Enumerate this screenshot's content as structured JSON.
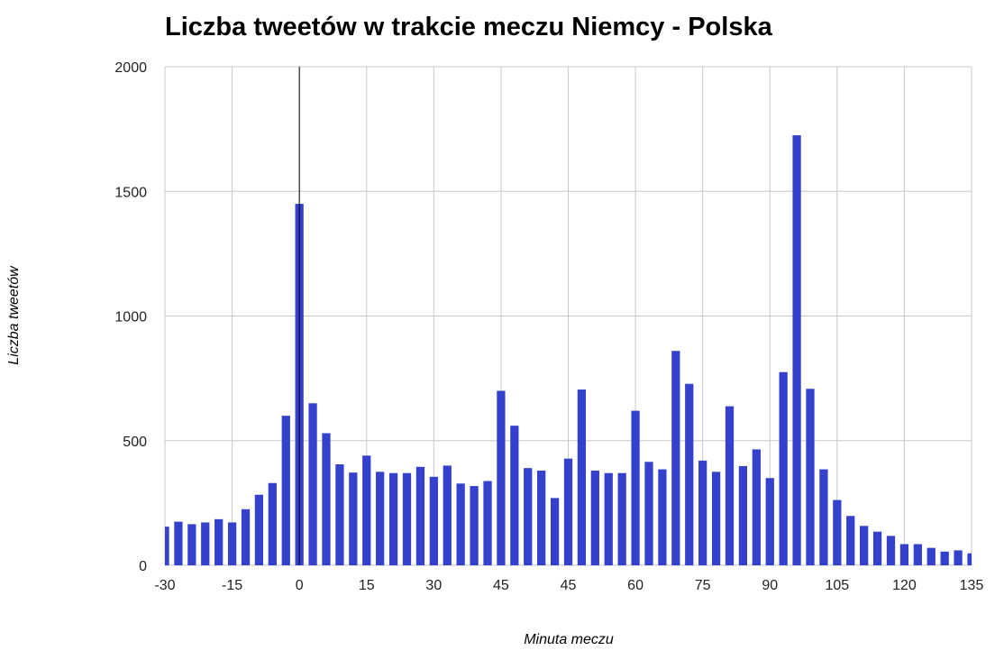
{
  "chart_data": {
    "type": "bar",
    "title": "Liczba tweetów w trakcie meczu Niemcy - Polska",
    "xlabel": "Minuta meczu",
    "ylabel": "Liczba tweetów",
    "ylim": [
      0,
      2000
    ],
    "y_ticks": [
      "0",
      "500",
      "1000",
      "1500",
      "2000"
    ],
    "x_ticks": [
      "-30",
      "-15",
      "0",
      "15",
      "30",
      "45",
      "45",
      "60",
      "75",
      "90",
      "105",
      "120",
      "135"
    ],
    "grid": true,
    "bar_color": "#3341cc",
    "kickoff_line_color": "#000000",
    "values": [
      155,
      175,
      165,
      172,
      185,
      172,
      225,
      283,
      330,
      600,
      1450,
      650,
      530,
      405,
      372,
      440,
      375,
      370,
      370,
      395,
      355,
      400,
      328,
      318,
      338,
      700,
      560,
      390,
      380,
      270,
      428,
      705,
      380,
      370,
      370,
      620,
      415,
      385,
      860,
      728,
      420,
      375,
      638,
      398,
      465,
      350,
      775,
      1725,
      708,
      385,
      262,
      198,
      158,
      135,
      118,
      85,
      85,
      70,
      55,
      60,
      48
    ]
  }
}
